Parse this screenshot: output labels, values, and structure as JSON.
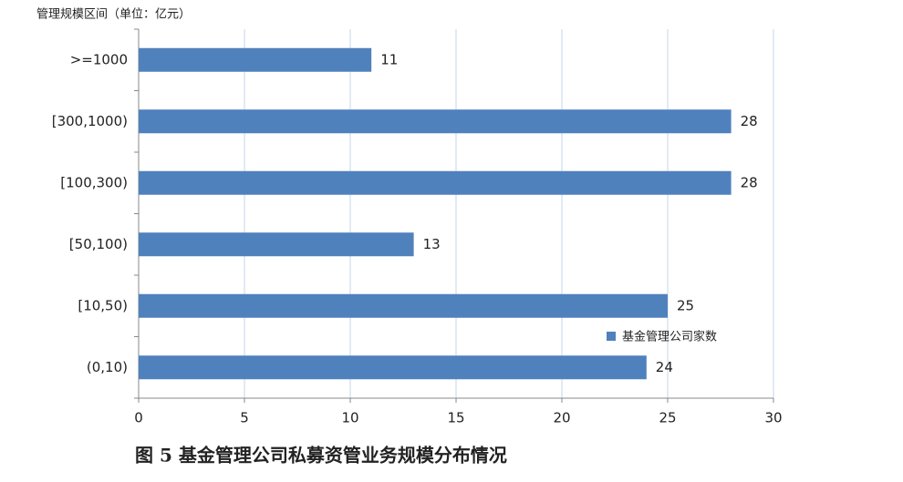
{
  "chart_data": {
    "type": "bar",
    "orientation": "horizontal",
    "y_label": "管理规模区间（单位：亿元）",
    "caption": "图 5   基金管理公司私募资管业务规模分布情况",
    "categories": [
      ">=1000",
      "[300,1000)",
      "[100,300)",
      "[50,100)",
      "[10,50)",
      "(0,10)"
    ],
    "series": [
      {
        "name": "基金管理公司家数",
        "color": "#4f81bd",
        "values": [
          11,
          28,
          28,
          13,
          25,
          24
        ]
      }
    ],
    "xlim": [
      0,
      30
    ],
    "xticks": [
      0,
      5,
      10,
      15,
      20,
      25,
      30
    ],
    "grid": true,
    "data_labels": true
  }
}
